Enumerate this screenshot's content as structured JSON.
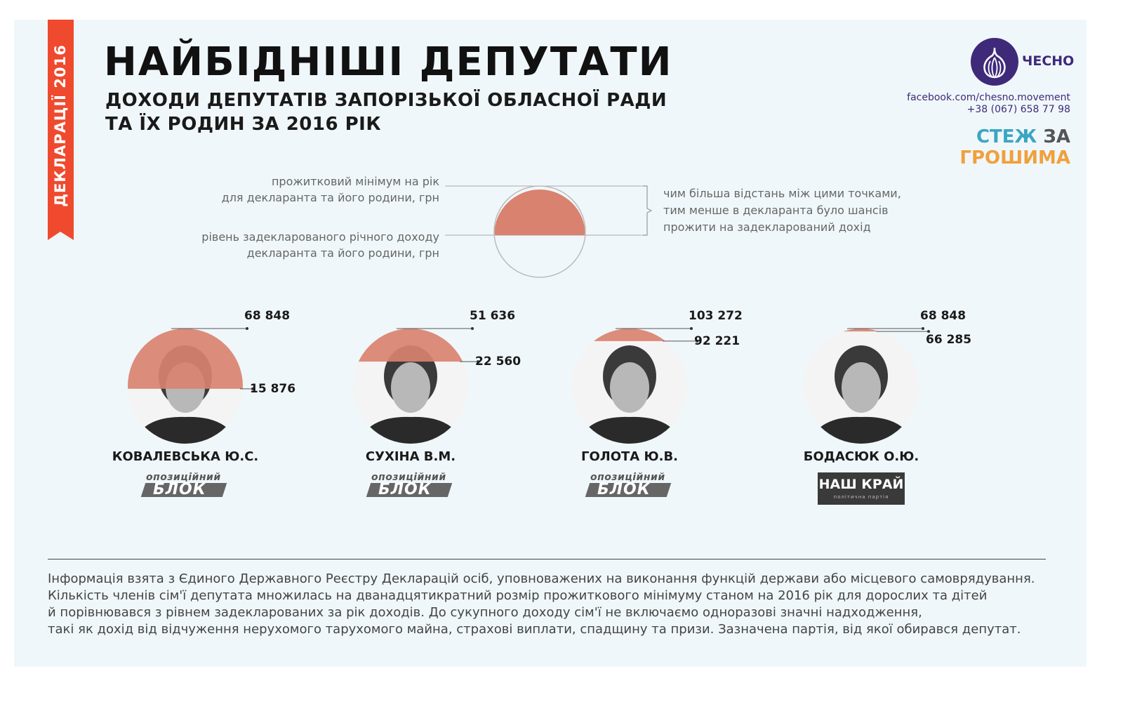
{
  "ribbon": {
    "label": "ДЕКЛАРАЦІЇ 2016"
  },
  "header": {
    "title": "НАЙБІДНІШІ ДЕПУТАТИ",
    "subtitle_line1": "ДОХОДИ ДЕПУТАТІВ ЗАПОРІЗЬКОЇ ОБЛАСНОЇ РАДИ",
    "subtitle_line2": "ТА ЇХ РОДИН ЗА 2016 РІК"
  },
  "brand": {
    "logo_text": "ЧЕСНО",
    "facebook": "facebook.com/chesno.movement",
    "phone": "+38 (067) 658 77 98",
    "stezh": "СТЕЖ",
    "za": "ЗА",
    "groshyma": "ГРОШИМА",
    "colors": {
      "brand": "#3f2a7a",
      "accent": "#ef4a2e",
      "fill": "#d9826f",
      "stezh": "#3aa6c2",
      "groshyma": "#f0a03c"
    }
  },
  "legend": {
    "top_line1": "прожитковий мінімум на рік",
    "top_line2": "для декларанта та його родини, грн",
    "bottom_line1": "рівень задекларованого річного доходу",
    "bottom_line2": "декларанта та його родини, грн",
    "right_line1": "чим більша відстань між цими точками,",
    "right_line2": "тим менше в декларанта було шансів",
    "right_line3": "прожити на задекларований дохід"
  },
  "deputies": [
    {
      "name": "КОВАЛЕВСЬКА Ю.С.",
      "minimum": 68848,
      "minimum_label": "68 848",
      "income": 15876,
      "income_label": "15 876",
      "party": "opposition"
    },
    {
      "name": "СУХІНА В.М.",
      "minimum": 51636,
      "minimum_label": "51 636",
      "income": 22560,
      "income_label": "22 560",
      "party": "opposition"
    },
    {
      "name": "ГОЛОТА Ю.В.",
      "minimum": 103272,
      "minimum_label": "103 272",
      "income": 92221,
      "income_label": "92 221",
      "party": "opposition"
    },
    {
      "name": "БОДАСЮК О.Ю.",
      "minimum": 68848,
      "minimum_label": "68 848",
      "income": 66285,
      "income_label": "66 285",
      "party": "nash_krai"
    }
  ],
  "parties": {
    "opposition": {
      "line1": "опозиційний",
      "line2": "БЛОК"
    },
    "nash_krai": {
      "line1": "НАШ КРАЙ",
      "line2": "політична партія"
    }
  },
  "footer": {
    "line1": "Інформація взята з Єдиного Державного Реєстру Декларацій осіб, уповноважених на виконання функцій держави або місцевого самоврядування.",
    "line2": "Кількість членів сім'ї депутата множилась на дванадцятикратний розмір прожиткового мінімуму станом на 2016 рік для дорослих та дітей",
    "line3": "й порівнювався з рівнем задекларованих за рік доходів. До сукупного доходу сім'ї не включаємо одноразові значні надходження,",
    "line4": "такі як дохід від відчуження  нерухомого тарухомого майна, страхові виплати, спадщину та призи. Зазначена партія, від якої обирався депутат."
  }
}
